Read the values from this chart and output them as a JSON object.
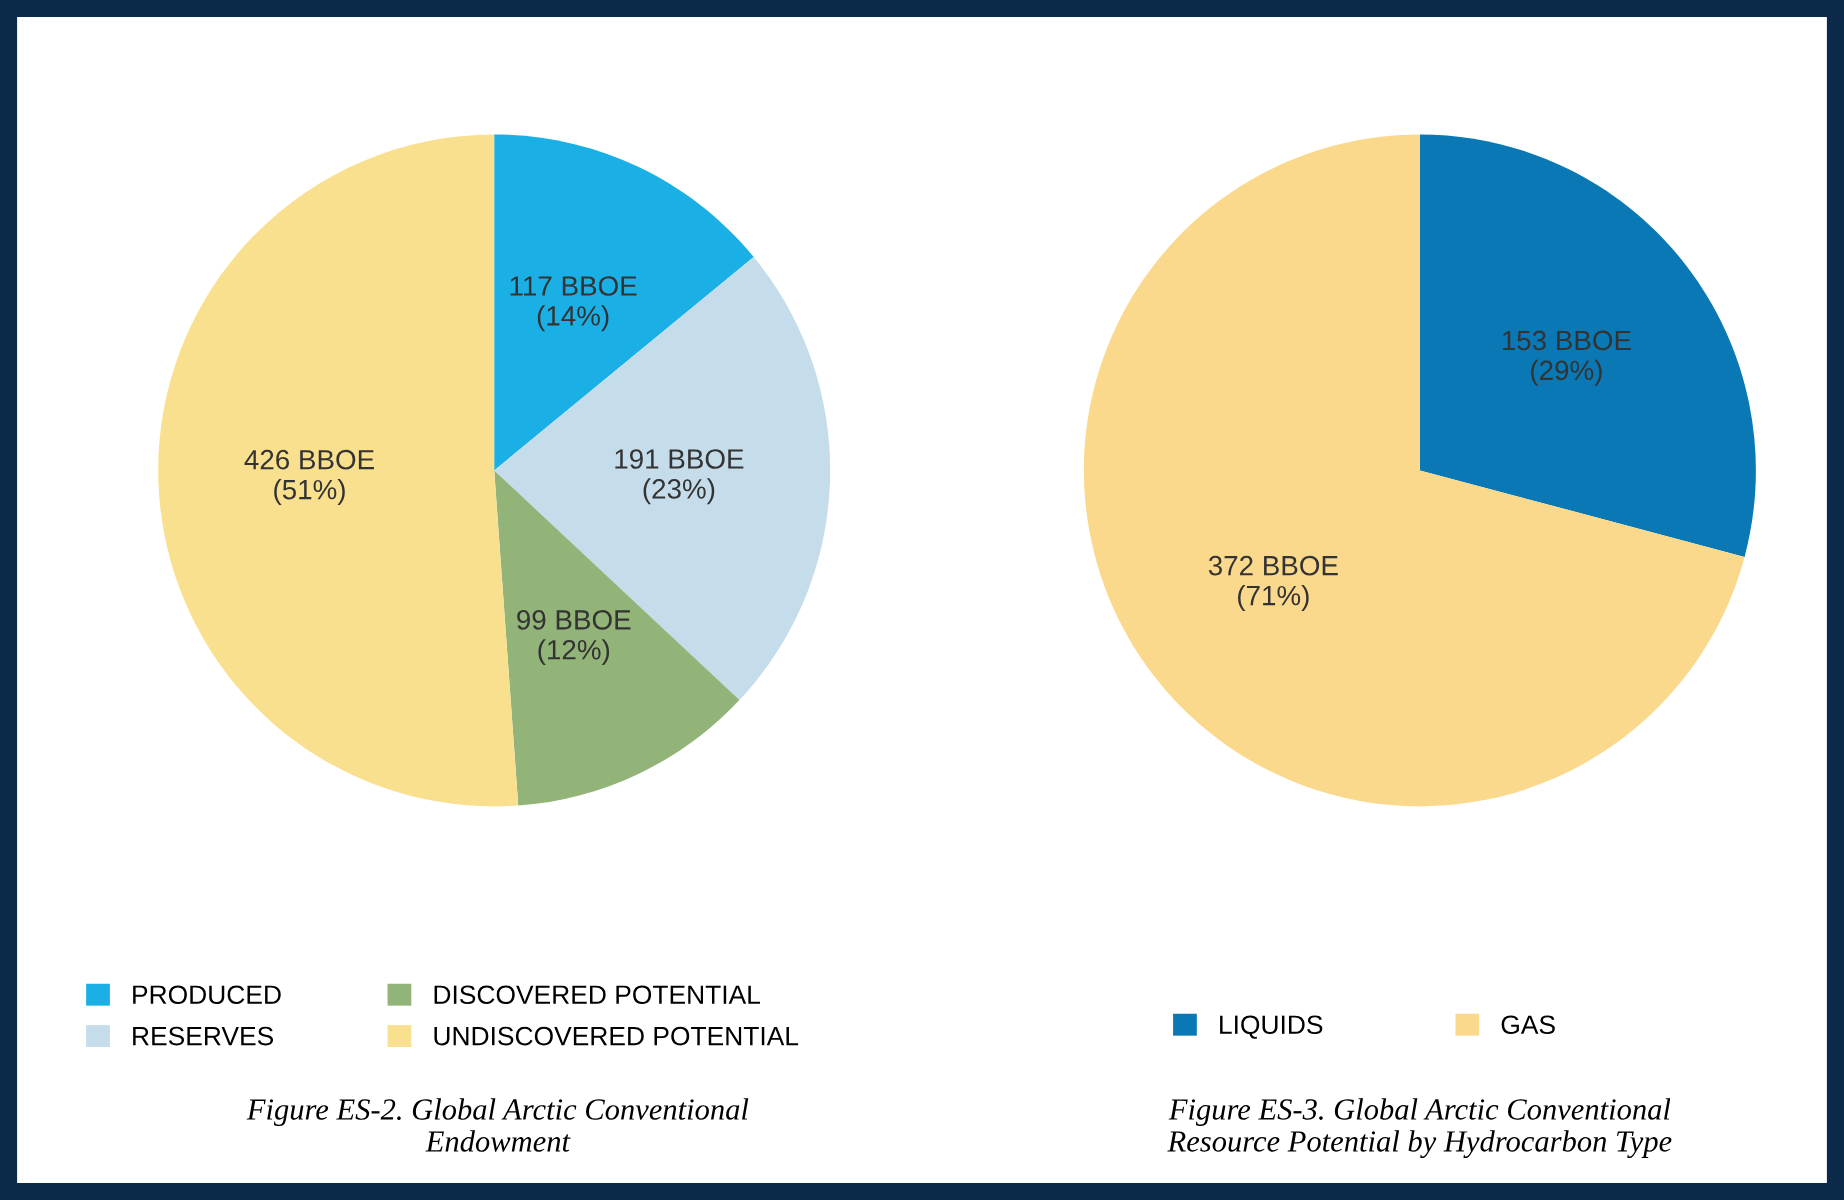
{
  "chart_data": [
    {
      "type": "pie",
      "title": "Figure ES-2. Global Arctic Conventional\nEndowment",
      "categories": [
        "PRODUCED",
        "RESERVES",
        "DISCOVERED POTENTIAL",
        "UNDISCOVERED POTENTIAL"
      ],
      "values": [
        117,
        191,
        99,
        426
      ],
      "colors": [
        "#1ab0e6",
        "#c5dcea",
        "#93b478",
        "#f9e08f"
      ],
      "value_labels": [
        "117 BBOE\n(14%)",
        "191 BBOE\n(23%)",
        "99 BBOE\n(12%)",
        "426 BBOE\n(51%)"
      ],
      "legend": "bottom"
    },
    {
      "type": "pie",
      "title": "Figure ES-3. Global Arctic Conventional\nResource Potential by Hydrocarbon Type",
      "categories": [
        "LIQUIDS",
        "GAS"
      ],
      "values": [
        153,
        372
      ],
      "colors": [
        "#0a78b4",
        "#fbd98c"
      ],
      "value_labels": [
        "153 BBOE\n(29%)",
        "372 BBOE\n(71%)"
      ],
      "legend": "bottom"
    }
  ]
}
